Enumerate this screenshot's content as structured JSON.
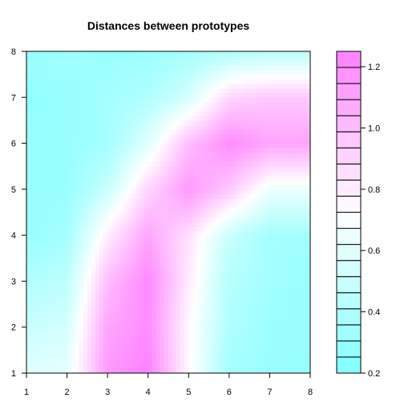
{
  "chart_data": {
    "type": "heatmap",
    "title": "Distances between prototypes",
    "xlabel": "",
    "ylabel": "",
    "xlim": [
      1,
      8
    ],
    "ylim": [
      1,
      8
    ],
    "x_ticks": [
      1,
      2,
      3,
      4,
      5,
      6,
      7,
      8
    ],
    "y_ticks": [
      1,
      2,
      3,
      4,
      5,
      6,
      7,
      8
    ],
    "x": [
      1,
      2,
      3,
      4,
      5,
      6,
      7,
      8
    ],
    "y": [
      1,
      2,
      3,
      4,
      5,
      6,
      7,
      8
    ],
    "z_rows_by_y": [
      [
        0.6,
        0.62,
        1.15,
        1.25,
        0.75,
        0.35,
        0.3,
        0.3
      ],
      [
        0.5,
        0.55,
        1.1,
        1.2,
        0.75,
        0.4,
        0.32,
        0.3
      ],
      [
        0.4,
        0.45,
        1.0,
        1.22,
        0.8,
        0.42,
        0.35,
        0.3
      ],
      [
        0.3,
        0.35,
        0.8,
        1.1,
        0.85,
        0.5,
        0.35,
        0.35
      ],
      [
        0.3,
        0.3,
        0.5,
        0.9,
        1.15,
        0.95,
        0.65,
        0.65
      ],
      [
        0.3,
        0.3,
        0.35,
        0.6,
        1.0,
        1.2,
        1.1,
        1.1
      ],
      [
        0.28,
        0.3,
        0.35,
        0.4,
        0.55,
        0.9,
        0.95,
        0.95
      ],
      [
        0.3,
        0.35,
        0.3,
        0.32,
        0.35,
        0.4,
        0.45,
        0.45
      ]
    ],
    "zlim": [
      0.2,
      1.25
    ],
    "legend": {
      "position": "right",
      "ticks": [
        0.2,
        0.4,
        0.6,
        0.8,
        1.0,
        1.2
      ],
      "tick_labels": [
        "0.2",
        "0.4",
        "0.6",
        "0.8",
        "1.0",
        "1.2"
      ],
      "levels": 20
    },
    "color_low": "#80ffff",
    "color_mid": "#ffffff",
    "color_high": "#ff80ff"
  }
}
